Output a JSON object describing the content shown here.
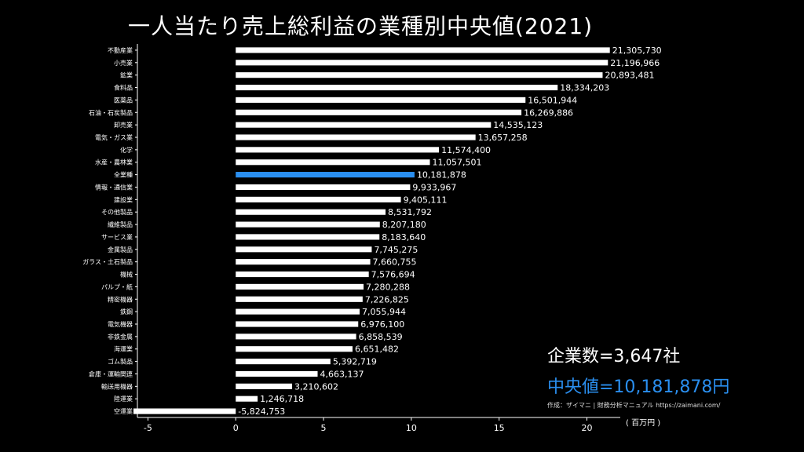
{
  "title": "一人当たり売上総利益の業種別中央値(2021)",
  "company_count": "企業数=3,647社",
  "median_text": "中央値=10,181,878円",
  "source": "作成：ザイマニ | 財務分析マニュアル https://zaimani.com/",
  "colors": {
    "bar": "#ffffff",
    "highlight": "#2a8ff0",
    "background": "#000000"
  },
  "chart_data": {
    "type": "bar",
    "orientation": "horizontal",
    "unit": "( 百万円 )",
    "xlim": [
      -5.6,
      21.9
    ],
    "x_ticks": [
      -5,
      0,
      5,
      10,
      15,
      20
    ],
    "highlight_category": "全業種",
    "categories": [
      "不動産業",
      "小売業",
      "鉱業",
      "食料品",
      "医薬品",
      "石油・石炭製品",
      "卸売業",
      "電気・ガス業",
      "化学",
      "水産・農林業",
      "全業種",
      "情報・通信業",
      "建設業",
      "その他製品",
      "繊維製品",
      "サービス業",
      "金属製品",
      "ガラス・土石製品",
      "機械",
      "パルプ・紙",
      "精密機器",
      "鉄鋼",
      "電気機器",
      "非鉄金属",
      "海運業",
      "ゴム製品",
      "倉庫・運輸関連",
      "輸送用機器",
      "陸運業",
      "空運業"
    ],
    "values": [
      21305730,
      21196966,
      20893481,
      18334203,
      16501944,
      16269886,
      14535123,
      13657258,
      11574400,
      11057501,
      10181878,
      9933967,
      9405111,
      8531792,
      8207180,
      8183640,
      7745275,
      7660755,
      7576694,
      7280288,
      7226825,
      7055944,
      6976100,
      6858539,
      6651482,
      5392719,
      4663137,
      3210602,
      1246718,
      -5824753
    ],
    "value_labels": [
      "21,305,730",
      "21,196,966",
      "20,893,481",
      "18,334,203",
      "16,501,944",
      "16,269,886",
      "14,535,123",
      "13,657,258",
      "11,574,400",
      "11,057,501",
      "10,181,878",
      "9,933,967",
      "9,405,111",
      "8,531,792",
      "8,207,180",
      "8,183,640",
      "7,745,275",
      "7,660,755",
      "7,576,694",
      "7,280,288",
      "7,226,825",
      "7,055,944",
      "6,976,100",
      "6,858,539",
      "6,651,482",
      "5,392,719",
      "4,663,137",
      "3,210,602",
      "1,246,718",
      "-5,824,753"
    ]
  }
}
